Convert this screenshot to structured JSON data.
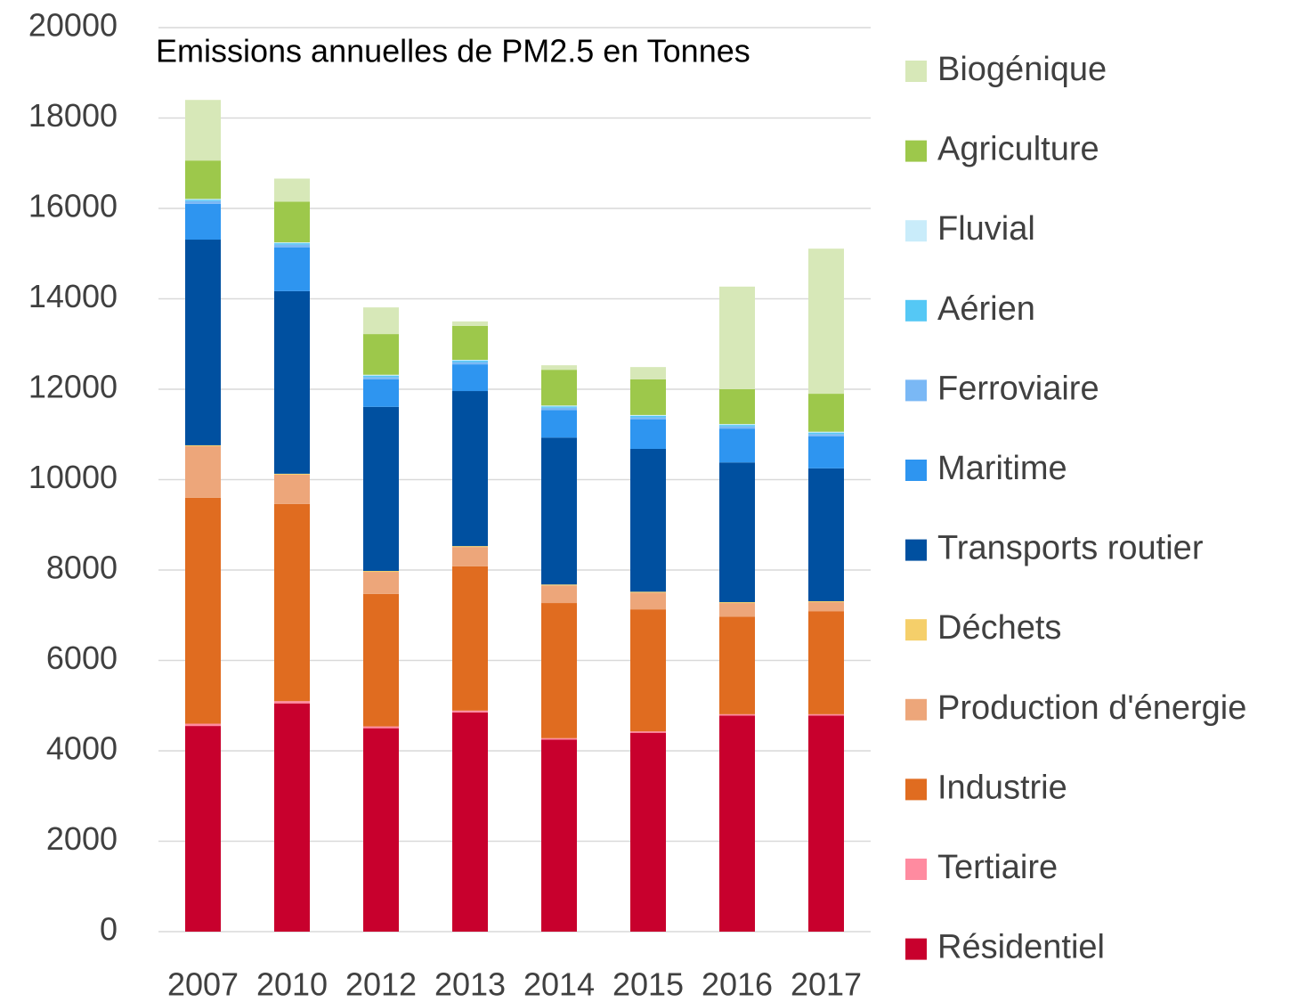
{
  "chart_data": {
    "type": "stacked_bar",
    "title": "Emissions annuelles de PM2.5 en Tonnes",
    "categories": [
      "2007",
      "2010",
      "2012",
      "2013",
      "2014",
      "2015",
      "2016",
      "2017"
    ],
    "ylim": [
      0,
      20000
    ],
    "yticks": [
      0,
      2000,
      4000,
      6000,
      8000,
      10000,
      12000,
      14000,
      16000,
      18000,
      20000
    ],
    "grid": true,
    "legend": "right",
    "series": [
      {
        "name": "Résidentiel",
        "color": "#c8002d",
        "values": [
          4550,
          5050,
          4500,
          4850,
          4250,
          4400,
          4780,
          4780
        ]
      },
      {
        "name": "Tertiaire",
        "color": "#ff8ba0",
        "values": [
          50,
          50,
          40,
          40,
          30,
          30,
          30,
          30
        ]
      },
      {
        "name": "Industrie",
        "color": "#e06c20",
        "values": [
          5000,
          4360,
          2930,
          3190,
          2990,
          2700,
          2160,
          2280
        ]
      },
      {
        "name": "Production d'énergie",
        "color": "#eda67a",
        "values": [
          1140,
          650,
          490,
          430,
          390,
          370,
          300,
          200
        ]
      },
      {
        "name": "Déchets",
        "color": "#f5cf6a",
        "values": [
          20,
          20,
          20,
          20,
          20,
          20,
          20,
          20
        ]
      },
      {
        "name": "Transports routier",
        "color": "#0050a0",
        "values": [
          4550,
          4040,
          3630,
          3430,
          3250,
          3160,
          3090,
          2940
        ]
      },
      {
        "name": "Maritime",
        "color": "#2e95f0",
        "values": [
          790,
          970,
          610,
          590,
          610,
          650,
          750,
          710
        ]
      },
      {
        "name": "Ferroviaire",
        "color": "#7ab8f5",
        "values": [
          60,
          60,
          50,
          50,
          50,
          50,
          50,
          50
        ]
      },
      {
        "name": "Aérien",
        "color": "#55c8f5",
        "values": [
          30,
          30,
          30,
          30,
          30,
          30,
          30,
          30
        ]
      },
      {
        "name": "Fluvial",
        "color": "#c9ecfa",
        "values": [
          20,
          20,
          20,
          20,
          20,
          20,
          20,
          20
        ]
      },
      {
        "name": "Agriculture",
        "color": "#9dc84b",
        "values": [
          850,
          900,
          900,
          750,
          790,
          790,
          770,
          840
        ]
      },
      {
        "name": "Biogénique",
        "color": "#d7e8b8",
        "values": [
          1340,
          510,
          590,
          100,
          100,
          270,
          2270,
          3210
        ]
      }
    ]
  }
}
